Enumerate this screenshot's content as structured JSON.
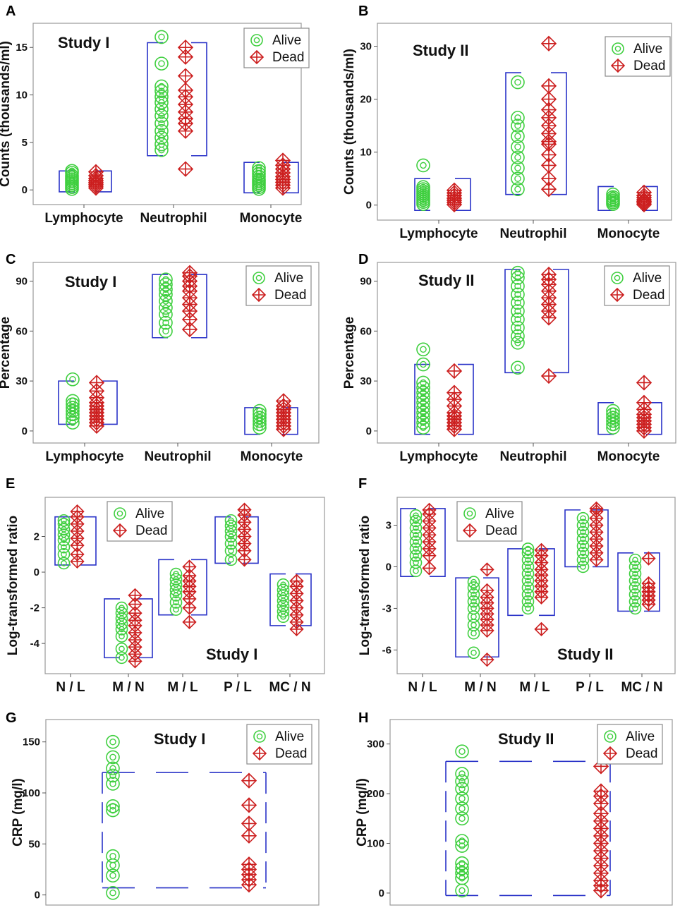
{
  "colors": {
    "alive": "#3fcf3f",
    "dead": "#cc1f1f",
    "bracket": "#2a33c8",
    "frame": "#9a9a9a"
  },
  "legend": {
    "alive": "Alive",
    "dead": "Dead"
  },
  "chart_data": [
    {
      "panel": "A",
      "type": "scatter",
      "title": "Study I",
      "ylabel": "Counts (thousands/ml)",
      "ylim": [
        -0.8,
        16.8
      ],
      "yticks": [
        0,
        5,
        10,
        15
      ],
      "categories": [
        "Lymphocyte",
        "Neutrophil",
        "Monocyte"
      ],
      "series": [
        {
          "name": "Alive",
          "values": [
            [
              0.1,
              0.3,
              0.5,
              0.7,
              0.9,
              1.1,
              1.3,
              1.5,
              1.8,
              2.0
            ],
            [
              4.2,
              4.8,
              5.5,
              6.2,
              7.0,
              7.8,
              8.5,
              9.2,
              9.8,
              10.4,
              10.9,
              13.3,
              16.1
            ],
            [
              0.1,
              0.3,
              0.5,
              0.7,
              0.9,
              1.1,
              1.4,
              1.7,
              2.0,
              2.3
            ]
          ]
        },
        {
          "name": "Dead",
          "values": [
            [
              0.2,
              0.4,
              0.6,
              0.8,
              1.0,
              1.2,
              1.5,
              1.9
            ],
            [
              2.2,
              6.2,
              7.0,
              7.5,
              8.2,
              9.0,
              9.8,
              10.5,
              12.0,
              14.0,
              15.0
            ],
            [
              0.2,
              0.5,
              0.8,
              1.1,
              1.4,
              1.8,
              2.2,
              2.6,
              3.1
            ]
          ]
        }
      ],
      "brackets": [
        [
          -0.2,
          2.0
        ],
        [
          3.6,
          15.5
        ],
        [
          -0.3,
          2.9
        ]
      ]
    },
    {
      "panel": "B",
      "type": "scatter",
      "title": "Study II",
      "ylabel": "Counts (thousands/ml)",
      "ylim": [
        -1.5,
        33
      ],
      "yticks": [
        0,
        10,
        20,
        30
      ],
      "categories": [
        "Lymphocyte",
        "Neutrophil",
        "Monocyte"
      ],
      "series": [
        {
          "name": "Alive",
          "values": [
            [
              0.2,
              0.6,
              1.0,
              1.4,
              1.8,
              2.2,
              2.6,
              3.0,
              3.4,
              7.5
            ],
            [
              3.0,
              5.0,
              7.0,
              9.0,
              11.0,
              13.0,
              15.0,
              16.5,
              23.2
            ],
            [
              0.2,
              0.5,
              0.8,
              1.1,
              1.5,
              2.0
            ]
          ]
        },
        {
          "name": "Dead",
          "values": [
            [
              0.1,
              0.5,
              0.9,
              1.3,
              1.8,
              2.3,
              2.8
            ],
            [
              3.0,
              5.0,
              7.5,
              9.5,
              11.5,
              12.0,
              13.5,
              15.0,
              16.5,
              18.0,
              20.0,
              22.5,
              30.5
            ],
            [
              0.1,
              0.4,
              0.7,
              1.0,
              1.4,
              1.8,
              2.4
            ]
          ]
        }
      ],
      "brackets": [
        [
          -1.0,
          5.0
        ],
        [
          2.0,
          25.0
        ],
        [
          -1.0,
          3.5
        ]
      ]
    },
    {
      "panel": "C",
      "type": "scatter",
      "title": "Study I",
      "ylabel": "Percentage",
      "ylim": [
        -3,
        97
      ],
      "yticks": [
        0,
        30,
        60,
        90
      ],
      "categories": [
        "Lymphocyte",
        "Neutrophil",
        "Monocyte"
      ],
      "series": [
        {
          "name": "Alive",
          "values": [
            [
              5,
              8,
              10,
              12,
              14,
              16,
              18,
              31
            ],
            [
              60,
              65,
              70,
              74,
              78,
              82,
              85,
              88,
              91
            ],
            [
              2,
              4,
              6,
              8,
              10,
              12
            ]
          ]
        },
        {
          "name": "Dead",
          "values": [
            [
              3,
              5,
              7,
              9,
              11,
              13,
              15,
              17,
              20,
              24,
              29
            ],
            [
              61,
              67,
              72,
              76,
              80,
              84,
              87,
              90,
              93,
              95
            ],
            [
              1,
              3,
              5,
              7,
              9,
              11,
              13,
              15,
              18
            ]
          ]
        }
      ],
      "brackets": [
        [
          4,
          30
        ],
        [
          56,
          94
        ],
        [
          -2,
          14
        ]
      ]
    },
    {
      "panel": "D",
      "type": "scatter",
      "title": "Study II",
      "ylabel": "Percentage",
      "ylim": [
        -3,
        97
      ],
      "yticks": [
        0,
        30,
        60,
        90
      ],
      "categories": [
        "Lymphocyte",
        "Neutrophil",
        "Monocyte"
      ],
      "series": [
        {
          "name": "Alive",
          "values": [
            [
              2,
              5,
              8,
              11,
              14,
              17,
              20,
              23,
              26,
              29,
              40,
              49
            ],
            [
              38,
              53,
              57,
              62,
              67,
              72,
              77,
              82,
              87,
              92,
              95
            ],
            [
              2,
              4,
              6,
              8,
              10,
              12
            ]
          ]
        },
        {
          "name": "Dead",
          "values": [
            [
              1,
              3,
              5,
              7,
              9,
              11,
              15,
              19,
              23,
              36
            ],
            [
              33,
              68,
              72,
              76,
              80,
              84,
              88,
              91,
              94
            ],
            [
              0,
              2,
              4,
              6,
              8,
              10,
              13,
              17,
              29
            ]
          ]
        }
      ],
      "brackets": [
        [
          -2,
          40
        ],
        [
          35,
          97
        ],
        [
          -2,
          17
        ]
      ]
    },
    {
      "panel": "E",
      "type": "scatter",
      "title": "Study I",
      "ylabel": "Log-transformed ratio",
      "ylim": [
        -5.3,
        3.8
      ],
      "yticks": [
        -4,
        -2,
        0,
        2
      ],
      "categories": [
        "N / L",
        "M / N",
        "M / L",
        "P / L",
        "MC / N"
      ],
      "series": [
        {
          "name": "Alive",
          "values": [
            [
              0.5,
              1.0,
              1.4,
              1.8,
              2.1,
              2.4,
              2.7,
              2.9
            ],
            [
              -4.8,
              -4.3,
              -3.6,
              -3.2,
              -2.9,
              -2.6,
              -2.3,
              -2.0
            ],
            [
              -2.1,
              -1.7,
              -1.3,
              -1.0,
              -0.7,
              -0.4,
              -0.1
            ],
            [
              0.7,
              1.2,
              1.6,
              2.0,
              2.3,
              2.6,
              2.9
            ],
            [
              -2.5,
              -2.2,
              -1.9,
              -1.6,
              -1.3,
              -1.0,
              -0.7
            ]
          ]
        },
        {
          "name": "Dead",
          "values": [
            [
              0.6,
              1.0,
              1.5,
              1.9,
              2.3,
              2.7,
              3.1,
              3.4
            ],
            [
              -5.0,
              -4.6,
              -4.2,
              -3.8,
              -3.4,
              -3.0,
              -2.7,
              -2.3,
              -1.8,
              -1.3
            ],
            [
              -2.8,
              -2.0,
              -1.5,
              -1.1,
              -0.8,
              -0.5,
              -0.2,
              0.3
            ],
            [
              0.7,
              1.2,
              1.6,
              2.0,
              2.4,
              2.8,
              3.2,
              3.5
            ],
            [
              -3.2,
              -2.8,
              -2.4,
              -2.0,
              -1.6,
              -1.2,
              -0.8,
              -0.5
            ]
          ]
        }
      ],
      "brackets": [
        [
          0.4,
          3.1
        ],
        [
          -4.8,
          -1.5
        ],
        [
          -2.4,
          0.7
        ],
        [
          0.5,
          3.1
        ],
        [
          -3.0,
          -0.1
        ]
      ]
    },
    {
      "panel": "F",
      "type": "scatter",
      "title": "Study II",
      "ylabel": "Log-transformed ratio",
      "ylim": [
        -7.2,
        4.5
      ],
      "yticks": [
        -6,
        -3,
        0,
        3
      ],
      "categories": [
        "N / L",
        "M / N",
        "M / L",
        "P / L",
        "MC / N"
      ],
      "series": [
        {
          "name": "Alive",
          "values": [
            [
              -0.3,
              0.3,
              0.8,
              1.3,
              1.8,
              2.3,
              2.8,
              3.3,
              3.7
            ],
            [
              -6.2,
              -4.8,
              -4.2,
              -3.6,
              -3.0,
              -2.5,
              -2.0,
              -1.5,
              -1.1
            ],
            [
              -3.0,
              -2.5,
              -2.0,
              -1.5,
              -1.0,
              -0.5,
              0.0,
              0.5,
              1.0,
              1.3
            ],
            [
              0.0,
              0.5,
              1.0,
              1.5,
              2.0,
              2.5,
              3.0,
              3.5
            ],
            [
              -3.0,
              -2.5,
              -2.0,
              -1.5,
              -1.0,
              -0.5,
              0.0,
              0.5
            ]
          ]
        },
        {
          "name": "Dead",
          "values": [
            [
              -0.1,
              0.8,
              1.3,
              1.8,
              2.3,
              2.8,
              3.3,
              3.8,
              4.1
            ],
            [
              -6.7,
              -4.6,
              -4.2,
              -3.8,
              -3.4,
              -3.0,
              -2.6,
              -2.2,
              -1.7,
              -0.2
            ],
            [
              -4.5,
              -2.2,
              -1.8,
              -1.4,
              -1.0,
              -0.6,
              -0.2,
              0.3,
              0.8,
              1.2
            ],
            [
              0.5,
              1.0,
              1.5,
              2.0,
              2.5,
              3.0,
              3.5,
              4.0,
              4.2
            ],
            [
              -2.7,
              -2.4,
              -2.1,
              -1.8,
              -1.5,
              -1.2,
              0.6
            ]
          ]
        }
      ],
      "brackets": [
        [
          -0.7,
          4.2
        ],
        [
          -6.5,
          -0.8
        ],
        [
          -3.5,
          1.3
        ],
        [
          0.0,
          4.1
        ],
        [
          -3.2,
          1.0
        ]
      ]
    },
    {
      "panel": "G",
      "type": "scatter",
      "title": "Study I",
      "ylabel": "CRP (mg/l)",
      "ylim": [
        -3,
        165
      ],
      "yticks": [
        0,
        50,
        100,
        150
      ],
      "categories": [
        "Alive",
        "Dead"
      ],
      "series": [
        {
          "name": "Alive",
          "values": [
            [
              2,
              19,
              29,
              38,
              83,
              87,
              109,
              117,
              124,
              135,
              150
            ],
            []
          ]
        },
        {
          "name": "Dead",
          "values": [
            [],
            [
              10,
              15,
              20,
              25,
              30,
              58,
              70,
              88,
              112
            ]
          ]
        }
      ],
      "brackets": [
        [
          7,
          120
        ]
      ]
    },
    {
      "panel": "H",
      "type": "scatter",
      "title": "Study II",
      "ylabel": "CRP (mg/l)",
      "ylim": [
        -10,
        335
      ],
      "yticks": [
        0,
        100,
        200,
        300
      ],
      "categories": [
        "Alive",
        "Dead"
      ],
      "series": [
        {
          "name": "Alive",
          "values": [
            [
              5,
              30,
              40,
              50,
              60,
              95,
              105,
              150,
              170,
              190,
              210,
              225,
              240,
              285
            ],
            []
          ]
        },
        {
          "name": "Dead",
          "values": [
            [],
            [
              5,
              15,
              25,
              40,
              55,
              70,
              85,
              100,
              115,
              130,
              145,
              160,
              180,
              195,
              205,
              255
            ]
          ]
        }
      ],
      "brackets": [
        [
          -5,
          265
        ]
      ]
    }
  ]
}
